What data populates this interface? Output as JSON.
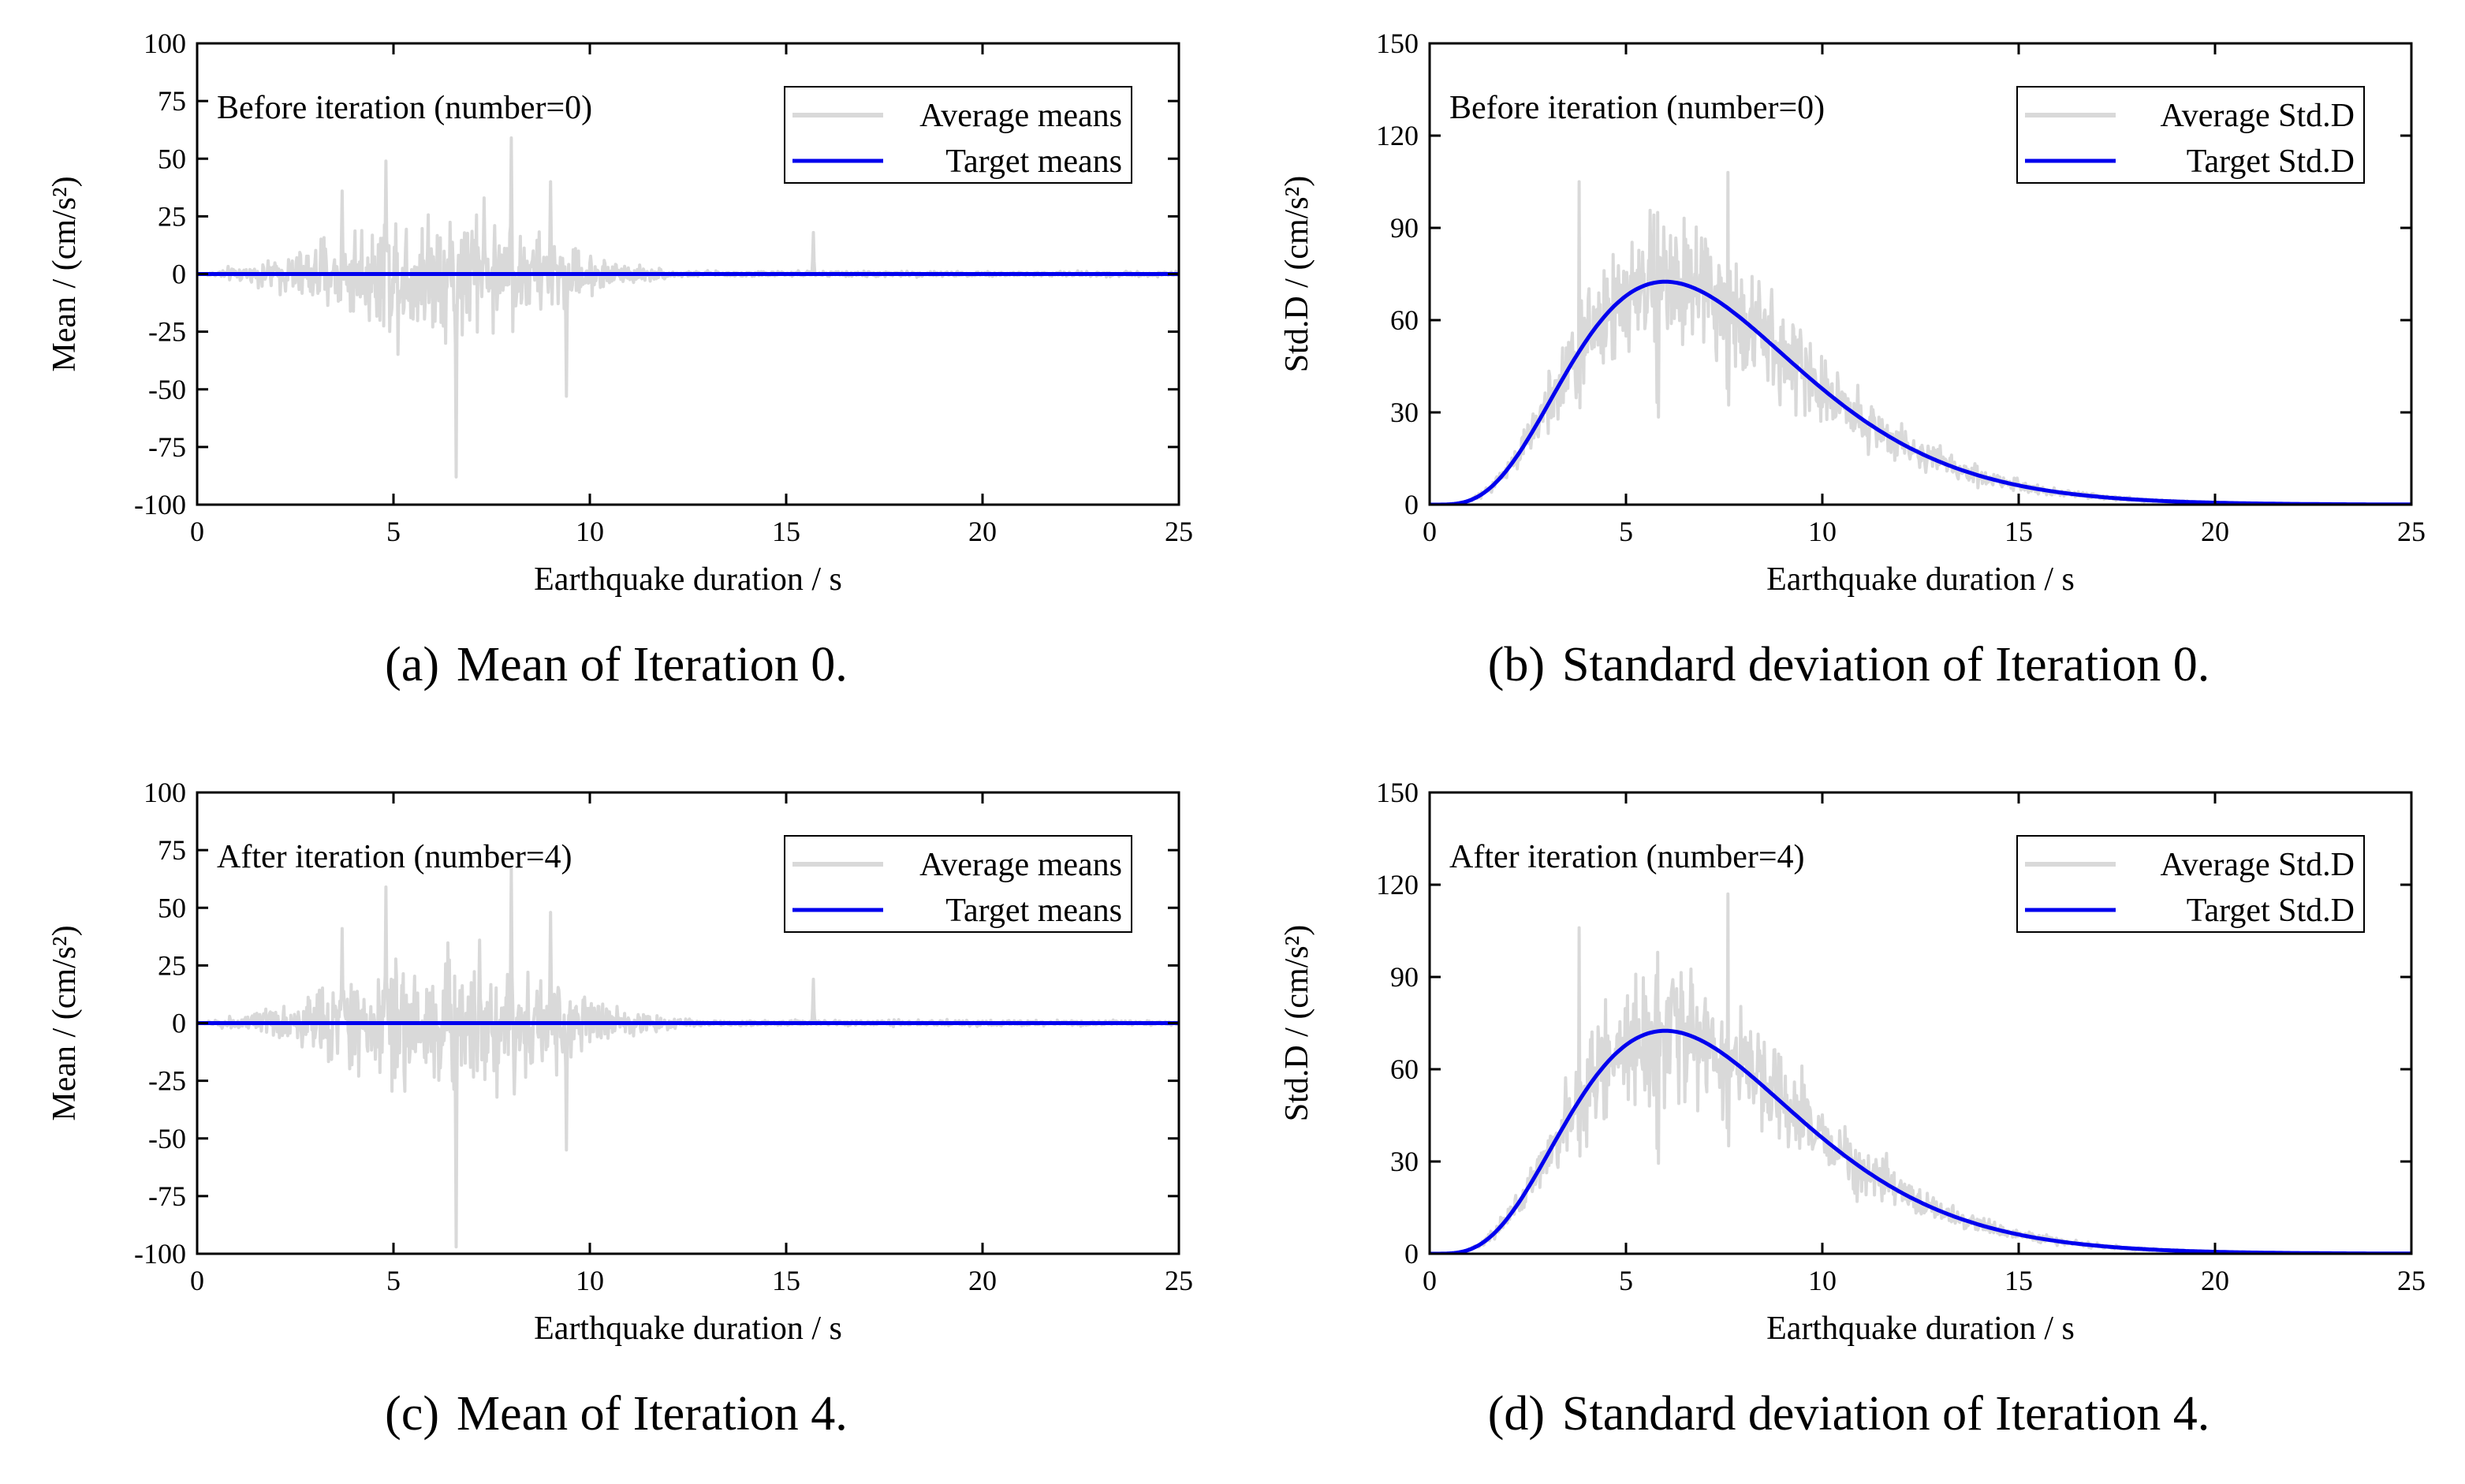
{
  "chart_data": [
    {
      "type": "line",
      "panel": "a",
      "caption_tag": "(a)",
      "caption": "Mean of Iteration 0.",
      "annotation": "Before iteration (number=0)",
      "xlabel": "Earthquake duration / s",
      "ylabel": "Mean / (cm/s²)",
      "xlim": [
        0,
        25
      ],
      "ylim": [
        -100,
        100
      ],
      "xticks": [
        0,
        5,
        10,
        15,
        20,
        25
      ],
      "yticks": [
        -100,
        -75,
        -50,
        -25,
        0,
        25,
        50,
        75,
        100
      ],
      "legend_position": "top-right",
      "series": [
        {
          "name": "Average means",
          "color": "#d9d9d9",
          "kind": "noise",
          "envelope": {
            "peak": 6.2,
            "rise": 3.5,
            "fall": 3.5,
            "amp": 42
          },
          "peaks": [
            {
              "x": 4.8,
              "y": 49
            },
            {
              "x": 8.0,
              "y": 59
            },
            {
              "x": 6.6,
              "y": -88
            },
            {
              "x": 3.7,
              "y": 36
            },
            {
              "x": 9.0,
              "y": 40
            },
            {
              "x": 7.3,
              "y": 33
            },
            {
              "x": 9.4,
              "y": -53
            },
            {
              "x": 15.7,
              "y": 18
            }
          ]
        },
        {
          "name": "Target means",
          "color": "#0000ee",
          "kind": "constant",
          "value": 0
        }
      ]
    },
    {
      "type": "line",
      "panel": "b",
      "caption_tag": "(b)",
      "caption": "Standard deviation of Iteration 0.",
      "annotation": "Before iteration (number=0)",
      "xlabel": "Earthquake duration / s",
      "ylabel": "Std.D / (cm/s²)",
      "xlim": [
        0,
        25
      ],
      "ylim": [
        0,
        150
      ],
      "xticks": [
        0,
        5,
        10,
        15,
        20,
        25
      ],
      "yticks": [
        0,
        30,
        60,
        90,
        120,
        150
      ],
      "legend_position": "top-right",
      "series": [
        {
          "name": "Average Std.D",
          "color": "#d9d9d9",
          "kind": "noisy-curve",
          "spread": 0.32,
          "peaks": [
            {
              "x": 3.8,
              "y": 105
            },
            {
              "x": 7.6,
              "y": 108
            },
            {
              "x": 5.8,
              "y": 95
            }
          ]
        },
        {
          "name": "Target Std.D",
          "color": "#0000ee",
          "kind": "curve",
          "peak_x": 6.0,
          "peak_y": 72.5
        }
      ]
    },
    {
      "type": "line",
      "panel": "c",
      "caption_tag": "(c)",
      "caption": "Mean of Iteration 4.",
      "annotation": "After iteration (number=4)",
      "xlabel": "Earthquake duration / s",
      "ylabel": "Mean / (cm/s²)",
      "xlim": [
        0,
        25
      ],
      "ylim": [
        -100,
        100
      ],
      "xticks": [
        0,
        5,
        10,
        15,
        20,
        25
      ],
      "yticks": [
        -100,
        -75,
        -50,
        -25,
        0,
        25,
        50,
        75,
        100
      ],
      "legend_position": "top-right",
      "series": [
        {
          "name": "Average means",
          "color": "#d9d9d9",
          "kind": "noise",
          "envelope": {
            "peak": 6.2,
            "rise": 3.5,
            "fall": 3.8,
            "amp": 44
          },
          "peaks": [
            {
              "x": 4.8,
              "y": 59
            },
            {
              "x": 8.0,
              "y": 67
            },
            {
              "x": 6.6,
              "y": -97
            },
            {
              "x": 3.7,
              "y": 41
            },
            {
              "x": 9.0,
              "y": 48
            },
            {
              "x": 7.2,
              "y": 36
            },
            {
              "x": 9.4,
              "y": -55
            },
            {
              "x": 15.7,
              "y": 19
            }
          ]
        },
        {
          "name": "Target means",
          "color": "#0000ee",
          "kind": "constant",
          "value": 0
        }
      ]
    },
    {
      "type": "line",
      "panel": "d",
      "caption_tag": "(d)",
      "caption": "Standard deviation of Iteration 4.",
      "annotation": "After iteration (number=4)",
      "xlabel": "Earthquake duration / s",
      "ylabel": "Std.D / (cm/s²)",
      "xlim": [
        0,
        25
      ],
      "ylim": [
        0,
        150
      ],
      "xticks": [
        0,
        5,
        10,
        15,
        20,
        25
      ],
      "yticks": [
        0,
        30,
        60,
        90,
        120,
        150
      ],
      "legend_position": "top-right",
      "series": [
        {
          "name": "Average Std.D",
          "color": "#d9d9d9",
          "kind": "noisy-curve",
          "spread": 0.3,
          "peaks": [
            {
              "x": 3.8,
              "y": 106
            },
            {
              "x": 7.6,
              "y": 117
            },
            {
              "x": 5.8,
              "y": 98
            }
          ]
        },
        {
          "name": "Target Std.D",
          "color": "#0000ee",
          "kind": "curve",
          "peak_x": 6.0,
          "peak_y": 72.5
        }
      ]
    }
  ]
}
